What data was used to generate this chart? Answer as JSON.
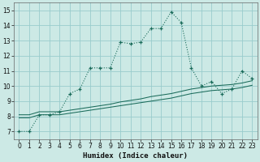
{
  "xlabel": "Humidex (Indice chaleur)",
  "bg_color": "#cce9e5",
  "grid_color": "#99cccc",
  "line_color": "#1a6b5a",
  "xlim": [
    -0.5,
    23.5
  ],
  "ylim": [
    6.5,
    15.5
  ],
  "xticks": [
    0,
    1,
    2,
    3,
    4,
    5,
    6,
    7,
    8,
    9,
    10,
    11,
    12,
    13,
    14,
    15,
    16,
    17,
    18,
    19,
    20,
    21,
    22,
    23
  ],
  "yticks": [
    7,
    8,
    9,
    10,
    11,
    12,
    13,
    14,
    15
  ],
  "series1_x": [
    0,
    1,
    2,
    3,
    4,
    5,
    6,
    7,
    8,
    9,
    10,
    11,
    12,
    13,
    14,
    15,
    16,
    17,
    18,
    19,
    20,
    21,
    22,
    23
  ],
  "series1_y": [
    7,
    7,
    8.1,
    8.1,
    8.3,
    9.5,
    9.8,
    11.2,
    11.2,
    11.2,
    12.9,
    12.8,
    12.9,
    13.8,
    13.8,
    14.9,
    14.2,
    11.2,
    10.0,
    10.3,
    9.5,
    9.8,
    11.0,
    10.5
  ],
  "series2_x": [
    0,
    1,
    2,
    3,
    4,
    5,
    6,
    7,
    8,
    9,
    10,
    11,
    12,
    13,
    14,
    15,
    16,
    17,
    18,
    19,
    20,
    21,
    22,
    23
  ],
  "series2_y": [
    7.9,
    7.9,
    8.1,
    8.1,
    8.1,
    8.2,
    8.3,
    8.4,
    8.5,
    8.6,
    8.7,
    8.8,
    8.9,
    9.0,
    9.1,
    9.2,
    9.35,
    9.5,
    9.6,
    9.7,
    9.75,
    9.8,
    9.9,
    10.05
  ],
  "series3_x": [
    0,
    1,
    2,
    3,
    4,
    5,
    6,
    7,
    8,
    9,
    10,
    11,
    12,
    13,
    14,
    15,
    16,
    17,
    18,
    19,
    20,
    21,
    22,
    23
  ],
  "series3_y": [
    8.1,
    8.1,
    8.3,
    8.3,
    8.3,
    8.4,
    8.5,
    8.6,
    8.7,
    8.8,
    8.95,
    9.05,
    9.15,
    9.3,
    9.4,
    9.5,
    9.65,
    9.8,
    9.9,
    10.0,
    10.05,
    10.1,
    10.2,
    10.35
  ]
}
